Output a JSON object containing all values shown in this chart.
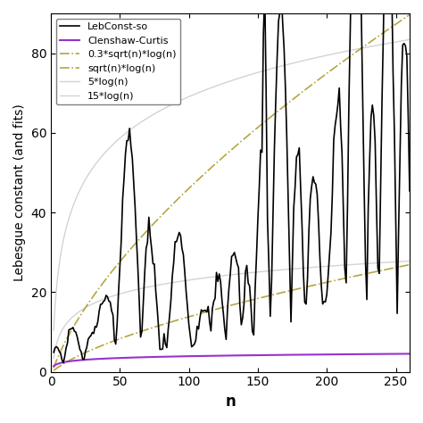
{
  "title": "",
  "xlabel": "n",
  "ylabel": "Lebesgue constant (and fits)",
  "xlim": [
    1,
    260
  ],
  "ylim": [
    0,
    90
  ],
  "n_start": 2,
  "n_end": 260,
  "background_color": "#ffffff",
  "legend_labels": [
    "LebConst-so",
    "Clenshaw-Curtis",
    "0.3*sqrt(n)*log(n)",
    "sqrt(n)*log(n)",
    "5*log(n)",
    "15*log(n)"
  ],
  "line_colors": [
    "#000000",
    "#9932cc",
    "#b5a642",
    "#b5a642",
    "#d3d3d3",
    "#d3d3d3"
  ],
  "line_styles": [
    "-",
    "-",
    "-.",
    "-.",
    "-",
    "-"
  ],
  "line_widths": [
    1.2,
    1.5,
    1.2,
    1.2,
    1.0,
    1.0
  ],
  "xticks": [
    0,
    50,
    100,
    150,
    200,
    250
  ],
  "yticks": [
    0,
    20,
    40,
    60,
    80
  ],
  "seed": 42
}
